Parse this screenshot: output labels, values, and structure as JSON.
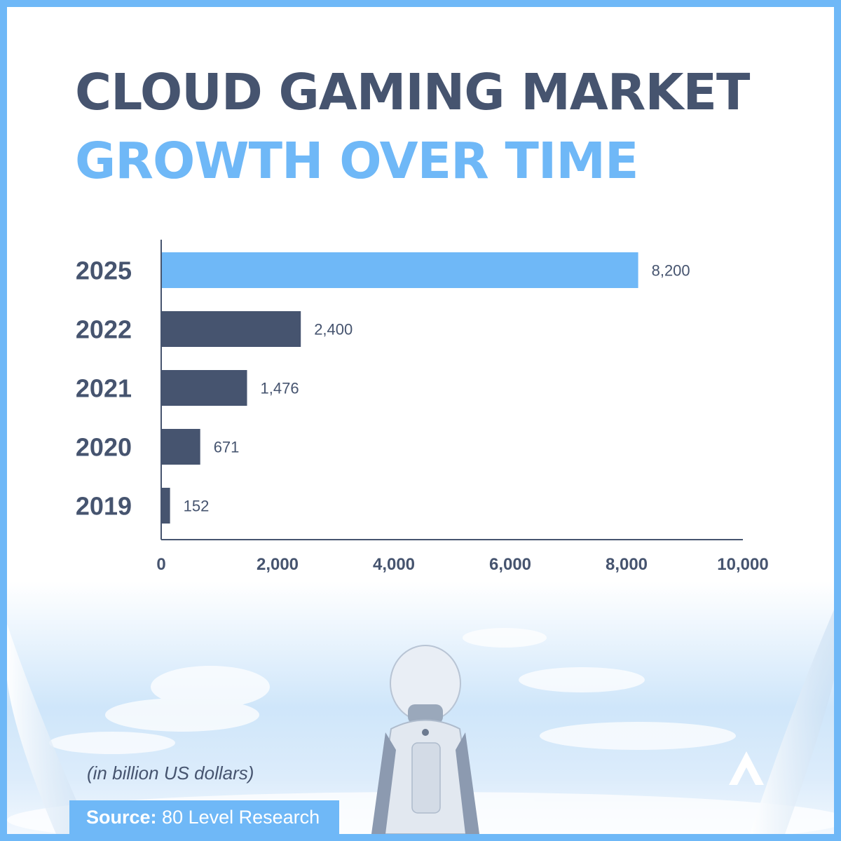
{
  "title": {
    "line1": "CLOUD GAMING MARKET",
    "line2": "GROWTH OVER TIME"
  },
  "unit_note": "(in billion US dollars)",
  "source": {
    "label": "Source:",
    "text": "80 Level Research"
  },
  "colors": {
    "accent": "#6fb8f7",
    "bar": "#46546f",
    "text": "#46546f"
  },
  "icons": {
    "logo": "80-level-logo-icon",
    "astronaut": "astronaut-illustration"
  },
  "chart_data": {
    "type": "bar",
    "orientation": "horizontal",
    "categories": [
      "2025",
      "2022",
      "2021",
      "2020",
      "2019"
    ],
    "values": [
      8200,
      2400,
      1476,
      671,
      152
    ],
    "value_labels": [
      "8,200",
      "2,400",
      "1,476",
      "671",
      "152"
    ],
    "highlight": "2025",
    "xlim": [
      0,
      10000
    ],
    "xticks": [
      0,
      2000,
      4000,
      6000,
      8000,
      10000
    ],
    "xtick_labels": [
      "0",
      "2,000",
      "4,000",
      "6,000",
      "8,000",
      "10,000"
    ],
    "grid": false,
    "legend": "none"
  }
}
